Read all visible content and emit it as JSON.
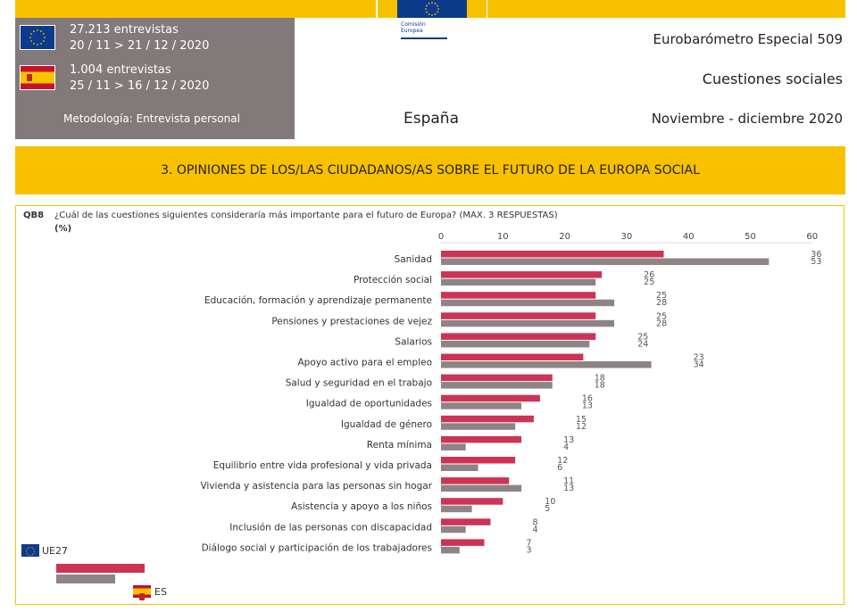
{
  "header": {
    "eu_interviews": "27.213 entrevistas",
    "eu_dates": "20 / 11 > 21 / 12 / 2020",
    "es_interviews": "1.004 entrevistas",
    "es_dates": "25 / 11 > 16 / 12 / 2020",
    "methodology": "Metodología: Entrevista personal",
    "logo_text_1": "Comisión",
    "logo_text_2": "Europea",
    "survey": "Eurobarómetro Especial 509",
    "topic": "Cuestiones sociales",
    "country": "España",
    "period": "Noviembre - diciembre 2020"
  },
  "section_title": "3. OPINIONES DE LOS/LAS CIUDADANOS/AS SOBRE EL FUTURO DE LA EUROPA SOCIAL",
  "question": {
    "code": "QB8",
    "text": "¿Cuál de las cuestiones siguientes consideraría más importante para el futuro de Europa? (MAX. 3 RESPUESTAS)",
    "unit": "(%)"
  },
  "legend": {
    "eu": "UE27",
    "es": "ES"
  },
  "colors": {
    "eu": "#cc3354",
    "es": "#8f8485",
    "accent": "#f8c100",
    "box": "#827a7a"
  },
  "chart_data": {
    "type": "bar",
    "orientation": "horizontal",
    "xlim": [
      0,
      60
    ],
    "ticks": [
      0,
      10,
      20,
      30,
      40,
      50,
      60
    ],
    "categories": [
      "Sanidad",
      "Protección social",
      "Educación, formación y aprendizaje permanente",
      "Pensiones y prestaciones de vejez",
      "Salarios",
      "Apoyo activo para el empleo",
      "Salud y seguridad en el trabajo",
      "Igualdad de oportunidades",
      "Igualdad de género",
      "Renta mínima",
      "Equilibrio entre vida profesional y vida privada",
      "Vivienda y asistencia para las personas sin hogar",
      "Asistencia y apoyo a los niños",
      "Inclusión de las personas con discapacidad",
      "Diálogo social y participación de los trabajadores"
    ],
    "series": [
      {
        "name": "UE27",
        "values": [
          36,
          26,
          25,
          25,
          25,
          23,
          18,
          16,
          15,
          13,
          12,
          11,
          10,
          8,
          7
        ]
      },
      {
        "name": "ES",
        "values": [
          53,
          25,
          28,
          28,
          24,
          34,
          18,
          13,
          12,
          4,
          6,
          13,
          5,
          4,
          3
        ]
      }
    ],
    "legend_position": "bottom-left",
    "grid": false
  }
}
